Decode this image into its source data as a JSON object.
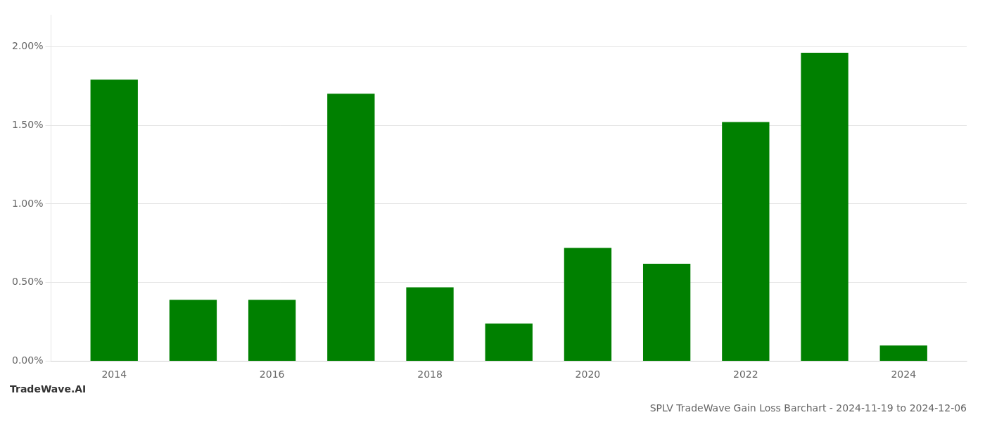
{
  "chart_data": {
    "type": "bar",
    "title": "SPLV TradeWave Gain Loss Barchart - 2024-11-19 to 2024-12-06",
    "annotations": [
      {
        "text": "TradeWave.AI"
      }
    ],
    "x": [
      2014,
      2015,
      2016,
      2017,
      2018,
      2019,
      2020,
      2021,
      2022,
      2023,
      2024
    ],
    "values": [
      0.0179,
      0.0039,
      0.0039,
      0.017,
      0.0047,
      0.0024,
      0.0072,
      0.0062,
      0.0152,
      0.0196,
      0.001
    ],
    "color": "#008000",
    "xlim": [
      2013.2,
      2024.8
    ],
    "xticks": [
      2014,
      2016,
      2018,
      2020,
      2022,
      2024
    ],
    "ylim": [
      0.0,
      0.022
    ],
    "yticks": [
      {
        "value": 0.0,
        "label": "0.00%"
      },
      {
        "value": 0.005,
        "label": "0.50%"
      },
      {
        "value": 0.01,
        "label": "1.00%"
      },
      {
        "value": 0.015,
        "label": "1.50%"
      },
      {
        "value": 0.02,
        "label": "2.00%"
      }
    ],
    "grid": "y"
  }
}
